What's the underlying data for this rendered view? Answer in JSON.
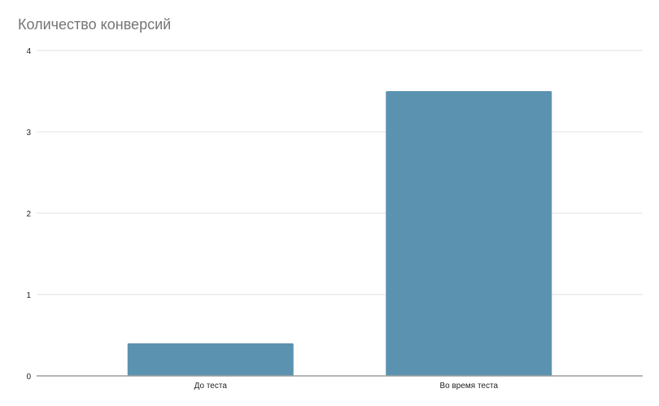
{
  "chart_data": {
    "type": "bar",
    "title": "Количество конверсий",
    "categories": [
      "До теста",
      "Во время теста"
    ],
    "values": [
      0.4,
      3.5
    ],
    "ylim": [
      0,
      4
    ],
    "yticks": [
      "0",
      "1",
      "2",
      "3",
      "4"
    ],
    "grid": true,
    "bar_color": "#5b92b0",
    "xlabel": "",
    "ylabel": ""
  }
}
